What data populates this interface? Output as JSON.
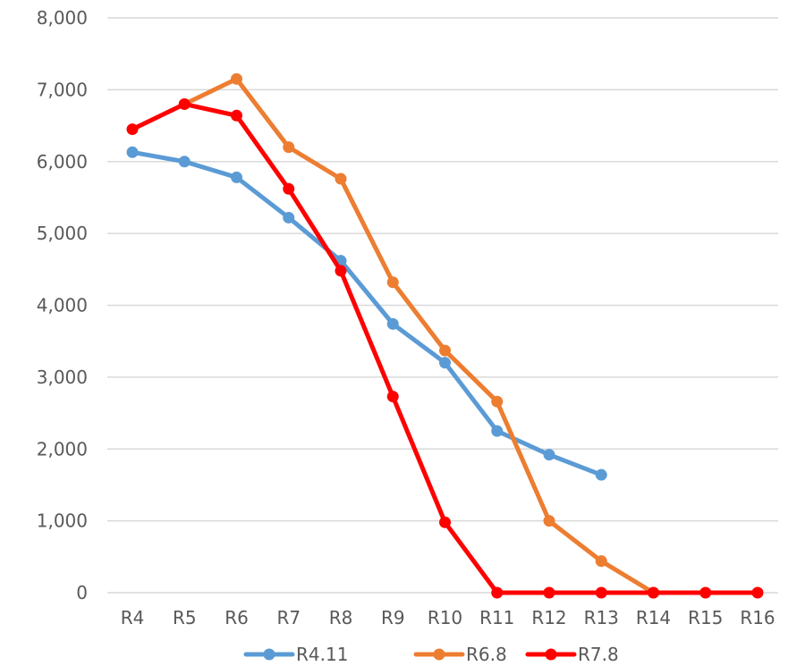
{
  "chart_data": {
    "type": "line",
    "title": "",
    "xlabel": "",
    "ylabel": "",
    "ylim": [
      0,
      8000
    ],
    "y_ticks": [
      "0",
      "1,000",
      "2,000",
      "3,000",
      "4,000",
      "5,000",
      "6,000",
      "7,000",
      "8,000"
    ],
    "grid": true,
    "legend": "bottom",
    "categories": [
      "R4",
      "R5",
      "R6",
      "R7",
      "R8",
      "R9",
      "R10",
      "R11",
      "R12",
      "R13",
      "R14",
      "R15",
      "R16"
    ],
    "series": [
      {
        "name": "R4.11",
        "color": "#5b9bd5",
        "values": [
          6130,
          6000,
          5780,
          5220,
          4620,
          3740,
          3200,
          2250,
          1920,
          1640,
          null,
          null,
          null
        ]
      },
      {
        "name": "R6.8",
        "color": "#ed7d31",
        "values": [
          null,
          6800,
          7150,
          6200,
          5760,
          4320,
          3370,
          2660,
          1000,
          440,
          0,
          null,
          null
        ]
      },
      {
        "name": "R7.8",
        "color": "#ff0000",
        "values": [
          6450,
          6800,
          6640,
          5620,
          4480,
          2730,
          980,
          0,
          0,
          0,
          0,
          0,
          0
        ]
      }
    ]
  }
}
